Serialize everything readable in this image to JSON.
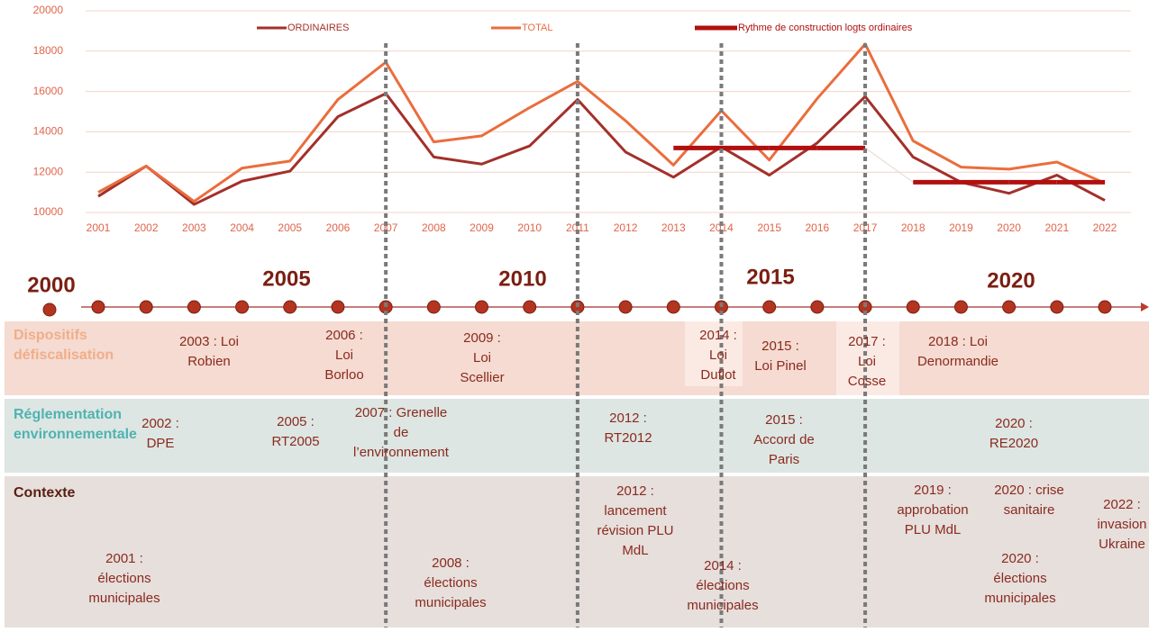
{
  "chart_data": {
    "type": "line",
    "categories": [
      "2001",
      "2002",
      "2003",
      "2004",
      "2005",
      "2006",
      "2007",
      "2008",
      "2009",
      "2010",
      "2011",
      "2012",
      "2013",
      "2014",
      "2015",
      "2016",
      "2017",
      "2018",
      "2019",
      "2020",
      "2021",
      "2022"
    ],
    "series": [
      {
        "name": "ORDINAIRES",
        "color": "#a3302a",
        "values": [
          10800,
          12300,
          10400,
          11550,
          12050,
          14750,
          15900,
          12750,
          12400,
          13300,
          15600,
          13000,
          11750,
          13250,
          11850,
          13450,
          15750,
          12750,
          11500,
          10950,
          11850,
          10600
        ]
      },
      {
        "name": "TOTAL",
        "color": "#ea6d3c",
        "values": [
          11000,
          12300,
          10550,
          12200,
          12550,
          15600,
          17450,
          13500,
          13800,
          15200,
          16500,
          14550,
          12350,
          15050,
          12600,
          15650,
          18350,
          13550,
          12250,
          12150,
          12500,
          11450
        ]
      },
      {
        "name": "Rythme de construction logts ordinaires",
        "color": "#b0100f",
        "values": [
          null,
          null,
          null,
          null,
          null,
          null,
          null,
          null,
          null,
          null,
          null,
          null,
          13200,
          13200,
          13200,
          13200,
          13200,
          11500,
          11500,
          11500,
          11500,
          11500
        ]
      }
    ],
    "ylim": [
      10000,
      20000
    ],
    "yticks": [
      10000,
      12000,
      14000,
      16000,
      18000,
      20000
    ],
    "grid": true,
    "highlight_years": [
      2007,
      2011,
      2014,
      2017
    ]
  },
  "timeline": {
    "year_labels": [
      "2000",
      "2005",
      "2010",
      "2015",
      "2020"
    ],
    "rows": [
      {
        "title": [
          "Dispositifs",
          "défiscalisation"
        ],
        "items": [
          [
            "2003 : Loi",
            "Robien"
          ],
          [
            "2006 :",
            "Loi",
            "Borloo"
          ],
          [
            "2009 :",
            "Loi",
            "Scellier"
          ],
          [
            "2014 :",
            "Loi",
            "Duflot"
          ],
          [
            "2015 :",
            "Loi Pinel"
          ],
          [
            "2017 :",
            "Loi",
            "Cosse"
          ],
          [
            "2018 : Loi",
            "Denormandie"
          ]
        ]
      },
      {
        "title": [
          "Réglementation",
          "environnementale"
        ],
        "items": [
          [
            "2002 :",
            "DPE"
          ],
          [
            "2005 :",
            "RT2005"
          ],
          [
            "2007 : Grenelle",
            "de",
            "l’environnement"
          ],
          [
            "2012 :",
            "RT2012"
          ],
          [
            "2015 :",
            "Accord de",
            "Paris"
          ],
          [
            "2020 :",
            "RE2020"
          ]
        ]
      },
      {
        "title": [
          "Contexte"
        ],
        "items": [
          [
            "2001 :",
            "élections",
            "municipales"
          ],
          [
            "2008 :",
            "élections",
            "municipales"
          ],
          [
            "2012 :",
            "lancement",
            "révision PLU",
            "MdL"
          ],
          [
            "2014 :",
            "élections",
            "municipales"
          ],
          [
            "2019 :",
            "approbation",
            "PLU MdL"
          ],
          [
            "2020 : crise",
            "sanitaire"
          ],
          [
            "2020 :",
            "élections",
            "municipales"
          ],
          [
            "2022 :",
            "invasion",
            "Ukraine"
          ]
        ]
      }
    ]
  }
}
